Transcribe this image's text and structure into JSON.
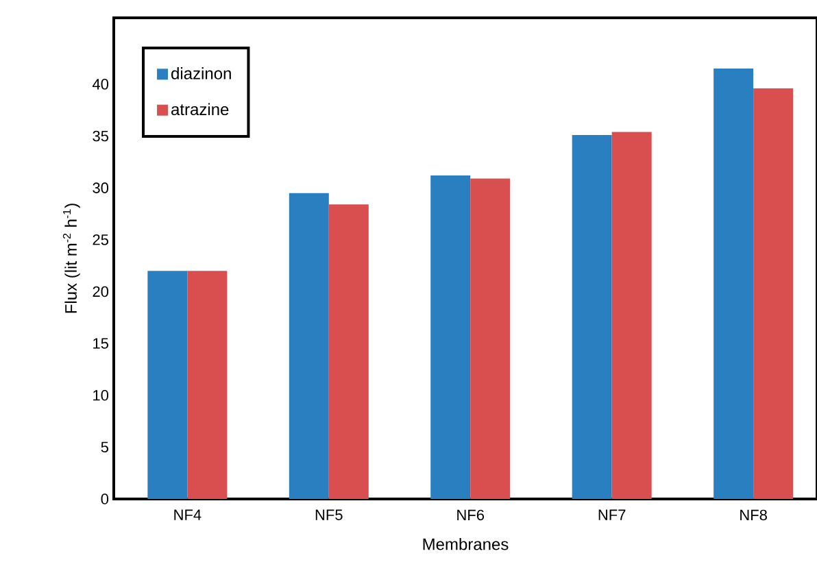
{
  "chart_data": {
    "type": "bar",
    "xlabel": "Membranes",
    "ylabel": "Flux (lit m$^{-2}$ h$^{-1}$)",
    "categories": [
      "NF4",
      "NF5",
      "NF6",
      "NF7",
      "NF8"
    ],
    "series": [
      {
        "name": "diazinon",
        "color": "#2a7fc1",
        "values": [
          22,
          29.5,
          31.2,
          35.1,
          41.5
        ]
      },
      {
        "name": "atrazine",
        "color": "#d94e4e",
        "values": [
          22,
          28.4,
          30.9,
          35.4,
          39.6
        ]
      }
    ],
    "ylim": [
      0,
      46.4
    ],
    "yticks": [
      0,
      5,
      10,
      15,
      20,
      25,
      30,
      35,
      40
    ],
    "legend": "top left"
  }
}
